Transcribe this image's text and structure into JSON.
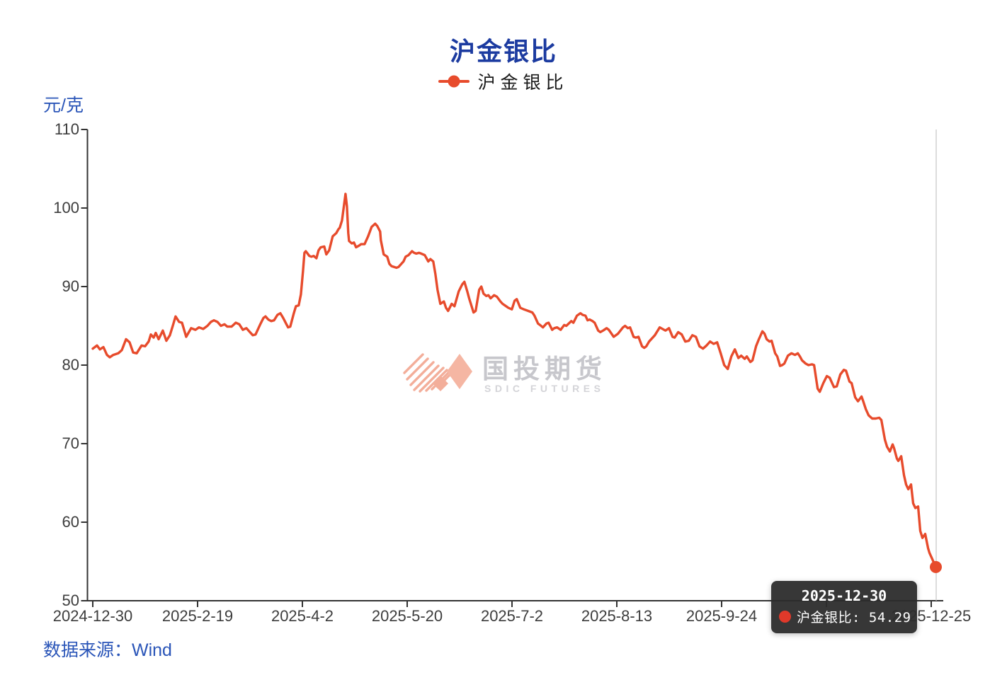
{
  "title": "沪金银比",
  "legend": {
    "label": "沪金银比"
  },
  "y_axis": {
    "unit": "元/克",
    "min": 50,
    "max": 110,
    "ticks": [
      110,
      100,
      90,
      80,
      70,
      60,
      50
    ]
  },
  "x_axis": {
    "labels": [
      "2024-12-30",
      "2025-2-19",
      "2025-4-2",
      "2025-5-20",
      "2025-7-2",
      "2025-8-13",
      "2025-9-24",
      "",
      "2025-12-25"
    ]
  },
  "source": "数据来源：Wind",
  "watermark": {
    "cn": "国投期货",
    "en": "SDIC FUTURES"
  },
  "tooltip": {
    "date": "2025-12-30",
    "series": "沪金银比",
    "value": "54.29"
  },
  "colors": {
    "line": "#e74b2c",
    "title": "#1c3ba0",
    "blue_label": "#2a55b8",
    "axis": "#333333",
    "axis_text": "#3d3d3d",
    "tooltip_bg": "#2c2c2c",
    "tooltip_dot": "#e0392a",
    "pointer_line": "#c9c9c9",
    "watermark_salmon": "#f3ae9a",
    "watermark_gray": "#c7c7cc"
  },
  "chart_data": {
    "type": "line",
    "title": "沪金银比",
    "series_name": "沪金银比",
    "y_unit": "元/克",
    "ylim": [
      50,
      110
    ],
    "y_ticks": [
      110,
      100,
      90,
      80,
      70,
      60,
      50
    ],
    "x_tick_labels": [
      "2024-12-30",
      "2025-2-19",
      "2025-4-2",
      "2025-5-20",
      "2025-7-2",
      "2025-8-13",
      "2025-9-24",
      "",
      "2025-12-25"
    ],
    "x_range": [
      "2024-12-30",
      "2025-12-30"
    ],
    "last_point": {
      "date": "2025-12-30",
      "value": 54.29
    },
    "legend_position": "top-center",
    "grid": false,
    "points": [
      [
        0.0,
        82.1
      ],
      [
        0.005,
        82.5
      ],
      [
        0.0084,
        82.0
      ],
      [
        0.0126,
        82.3
      ],
      [
        0.0168,
        81.3
      ],
      [
        0.0202,
        81.0
      ],
      [
        0.0244,
        81.3
      ],
      [
        0.0302,
        81.5
      ],
      [
        0.0344,
        81.9
      ],
      [
        0.0395,
        83.3
      ],
      [
        0.0437,
        82.9
      ],
      [
        0.0479,
        81.6
      ],
      [
        0.0521,
        81.5
      ],
      [
        0.0579,
        82.5
      ],
      [
        0.0621,
        82.4
      ],
      [
        0.0663,
        83.0
      ],
      [
        0.0689,
        83.9
      ],
      [
        0.0722,
        83.5
      ],
      [
        0.0747,
        84.1
      ],
      [
        0.0781,
        83.3
      ],
      [
        0.0831,
        84.4
      ],
      [
        0.0873,
        83.1
      ],
      [
        0.0915,
        83.8
      ],
      [
        0.0949,
        85.0
      ],
      [
        0.0982,
        86.2
      ],
      [
        0.1024,
        85.5
      ],
      [
        0.1058,
        85.4
      ],
      [
        0.1108,
        83.6
      ],
      [
        0.1167,
        84.7
      ],
      [
        0.1218,
        84.5
      ],
      [
        0.126,
        84.8
      ],
      [
        0.131,
        84.6
      ],
      [
        0.136,
        85.0
      ],
      [
        0.1402,
        85.5
      ],
      [
        0.1436,
        85.7
      ],
      [
        0.1478,
        85.5
      ],
      [
        0.152,
        85.0
      ],
      [
        0.1562,
        85.2
      ],
      [
        0.1595,
        84.9
      ],
      [
        0.1646,
        84.9
      ],
      [
        0.1696,
        85.4
      ],
      [
        0.1738,
        85.2
      ],
      [
        0.178,
        84.5
      ],
      [
        0.1822,
        84.7
      ],
      [
        0.1864,
        84.2
      ],
      [
        0.1898,
        83.8
      ],
      [
        0.1931,
        83.9
      ],
      [
        0.1982,
        85.1
      ],
      [
        0.2024,
        86.0
      ],
      [
        0.2049,
        86.2
      ],
      [
        0.2082,
        85.8
      ],
      [
        0.2116,
        85.6
      ],
      [
        0.215,
        85.7
      ],
      [
        0.2191,
        86.4
      ],
      [
        0.2225,
        86.6
      ],
      [
        0.2259,
        86.0
      ],
      [
        0.2292,
        85.3
      ],
      [
        0.2317,
        84.8
      ],
      [
        0.2343,
        84.9
      ],
      [
        0.2385,
        86.6
      ],
      [
        0.241,
        87.5
      ],
      [
        0.2443,
        87.6
      ],
      [
        0.2469,
        89.0
      ],
      [
        0.2494,
        92.0
      ],
      [
        0.2511,
        94.3
      ],
      [
        0.2527,
        94.5
      ],
      [
        0.2569,
        93.9
      ],
      [
        0.2594,
        93.8
      ],
      [
        0.262,
        93.9
      ],
      [
        0.2653,
        93.6
      ],
      [
        0.2678,
        94.6
      ],
      [
        0.2704,
        95.0
      ],
      [
        0.2746,
        95.1
      ],
      [
        0.277,
        94.1
      ],
      [
        0.2804,
        94.6
      ],
      [
        0.2846,
        96.4
      ],
      [
        0.2888,
        96.8
      ],
      [
        0.2914,
        97.3
      ],
      [
        0.293,
        97.5
      ],
      [
        0.2956,
        98.4
      ],
      [
        0.2998,
        101.8
      ],
      [
        0.3015,
        100.2
      ],
      [
        0.3031,
        96.8
      ],
      [
        0.304,
        95.8
      ],
      [
        0.3073,
        95.5
      ],
      [
        0.3098,
        95.6
      ],
      [
        0.3123,
        95.0
      ],
      [
        0.3157,
        95.2
      ],
      [
        0.3182,
        95.4
      ],
      [
        0.3224,
        95.4
      ],
      [
        0.3266,
        96.4
      ],
      [
        0.3308,
        97.6
      ],
      [
        0.335,
        98.0
      ],
      [
        0.3375,
        97.7
      ],
      [
        0.3409,
        97.0
      ],
      [
        0.3417,
        95.9
      ],
      [
        0.3451,
        94.1
      ],
      [
        0.3493,
        93.8
      ],
      [
        0.3518,
        92.9
      ],
      [
        0.3543,
        92.6
      ],
      [
        0.3602,
        92.4
      ],
      [
        0.3627,
        92.5
      ],
      [
        0.3686,
        93.2
      ],
      [
        0.3711,
        93.8
      ],
      [
        0.3745,
        94.0
      ],
      [
        0.3787,
        94.5
      ],
      [
        0.3812,
        94.3
      ],
      [
        0.3837,
        94.2
      ],
      [
        0.3871,
        94.3
      ],
      [
        0.3896,
        94.2
      ],
      [
        0.3938,
        94.0
      ],
      [
        0.398,
        93.2
      ],
      [
        0.4005,
        93.5
      ],
      [
        0.4039,
        93.2
      ],
      [
        0.4064,
        91.6
      ],
      [
        0.4089,
        89.6
      ],
      [
        0.4123,
        87.8
      ],
      [
        0.4165,
        88.1
      ],
      [
        0.419,
        87.3
      ],
      [
        0.4215,
        86.9
      ],
      [
        0.4257,
        87.8
      ],
      [
        0.4291,
        87.5
      ],
      [
        0.4341,
        89.4
      ],
      [
        0.4383,
        90.3
      ],
      [
        0.4408,
        90.6
      ],
      [
        0.4442,
        89.4
      ],
      [
        0.4467,
        88.4
      ],
      [
        0.4517,
        86.7
      ],
      [
        0.4542,
        86.9
      ],
      [
        0.4584,
        89.6
      ],
      [
        0.4609,
        90.0
      ],
      [
        0.4635,
        89.1
      ],
      [
        0.4668,
        88.8
      ],
      [
        0.4693,
        88.9
      ],
      [
        0.4719,
        88.5
      ],
      [
        0.4761,
        88.9
      ],
      [
        0.4794,
        88.7
      ],
      [
        0.4836,
        88.1
      ],
      [
        0.4861,
        87.8
      ],
      [
        0.4903,
        87.5
      ],
      [
        0.4929,
        87.3
      ],
      [
        0.4971,
        87.1
      ],
      [
        0.5004,
        88.2
      ],
      [
        0.5029,
        88.4
      ],
      [
        0.5071,
        87.3
      ],
      [
        0.5113,
        87.1
      ],
      [
        0.5164,
        86.9
      ],
      [
        0.5214,
        86.7
      ],
      [
        0.5239,
        86.3
      ],
      [
        0.5281,
        85.3
      ],
      [
        0.5306,
        85.1
      ],
      [
        0.534,
        84.8
      ],
      [
        0.5382,
        85.3
      ],
      [
        0.5407,
        85.4
      ],
      [
        0.5449,
        84.5
      ],
      [
        0.5474,
        84.7
      ],
      [
        0.5508,
        84.8
      ],
      [
        0.555,
        84.5
      ],
      [
        0.5592,
        85.1
      ],
      [
        0.5617,
        85.0
      ],
      [
        0.5676,
        85.6
      ],
      [
        0.5701,
        85.4
      ],
      [
        0.5743,
        86.3
      ],
      [
        0.5785,
        86.6
      ],
      [
        0.581,
        86.4
      ],
      [
        0.5844,
        86.3
      ],
      [
        0.5869,
        85.7
      ],
      [
        0.5894,
        85.8
      ],
      [
        0.5928,
        85.6
      ],
      [
        0.5953,
        85.4
      ],
      [
        0.5995,
        84.4
      ],
      [
        0.602,
        84.2
      ],
      [
        0.6053,
        84.4
      ],
      [
        0.6095,
        84.7
      ],
      [
        0.6121,
        84.5
      ],
      [
        0.6179,
        83.6
      ],
      [
        0.623,
        84.0
      ],
      [
        0.6289,
        84.8
      ],
      [
        0.6314,
        85.0
      ],
      [
        0.6347,
        84.7
      ],
      [
        0.6373,
        84.8
      ],
      [
        0.6415,
        83.6
      ],
      [
        0.644,
        83.5
      ],
      [
        0.6473,
        83.6
      ],
      [
        0.6515,
        82.4
      ],
      [
        0.6541,
        82.2
      ],
      [
        0.6566,
        82.4
      ],
      [
        0.6599,
        83.0
      ],
      [
        0.6667,
        83.8
      ],
      [
        0.6725,
        84.8
      ],
      [
        0.6793,
        84.4
      ],
      [
        0.6835,
        84.7
      ],
      [
        0.6877,
        83.6
      ],
      [
        0.6902,
        83.5
      ],
      [
        0.6944,
        84.2
      ],
      [
        0.6986,
        83.9
      ],
      [
        0.7028,
        83.0
      ],
      [
        0.707,
        83.1
      ],
      [
        0.7112,
        83.8
      ],
      [
        0.7154,
        83.6
      ],
      [
        0.7196,
        82.4
      ],
      [
        0.7238,
        82.1
      ],
      [
        0.728,
        82.5
      ],
      [
        0.7322,
        83.0
      ],
      [
        0.7364,
        82.7
      ],
      [
        0.7406,
        82.9
      ],
      [
        0.7448,
        81.5
      ],
      [
        0.749,
        80.0
      ],
      [
        0.7532,
        79.5
      ],
      [
        0.7574,
        81.1
      ],
      [
        0.7616,
        82.0
      ],
      [
        0.7658,
        80.9
      ],
      [
        0.7691,
        81.2
      ],
      [
        0.7733,
        80.8
      ],
      [
        0.7758,
        81.1
      ],
      [
        0.78,
        80.4
      ],
      [
        0.7825,
        80.6
      ],
      [
        0.7867,
        82.4
      ],
      [
        0.7901,
        83.3
      ],
      [
        0.7943,
        84.3
      ],
      [
        0.7968,
        84.0
      ],
      [
        0.7993,
        83.3
      ],
      [
        0.8027,
        83.0
      ],
      [
        0.8052,
        83.1
      ],
      [
        0.8094,
        81.5
      ],
      [
        0.8119,
        81.1
      ],
      [
        0.8152,
        79.9
      ],
      [
        0.8178,
        80.0
      ],
      [
        0.8203,
        80.2
      ],
      [
        0.8245,
        81.2
      ],
      [
        0.8287,
        81.5
      ],
      [
        0.8329,
        81.3
      ],
      [
        0.8363,
        81.5
      ],
      [
        0.8388,
        81.1
      ],
      [
        0.8413,
        80.6
      ],
      [
        0.8455,
        80.2
      ],
      [
        0.8489,
        80.0
      ],
      [
        0.8531,
        80.1
      ],
      [
        0.8556,
        80.0
      ],
      [
        0.8598,
        77.0
      ],
      [
        0.8623,
        76.6
      ],
      [
        0.8665,
        77.7
      ],
      [
        0.8707,
        78.6
      ],
      [
        0.8741,
        78.4
      ],
      [
        0.8791,
        77.2
      ],
      [
        0.8825,
        77.3
      ],
      [
        0.8867,
        78.8
      ],
      [
        0.8909,
        79.4
      ],
      [
        0.8934,
        79.3
      ],
      [
        0.8976,
        77.9
      ],
      [
        0.9001,
        77.7
      ],
      [
        0.9043,
        75.9
      ],
      [
        0.9077,
        75.4
      ],
      [
        0.9119,
        76.0
      ],
      [
        0.9136,
        75.5
      ],
      [
        0.9169,
        74.4
      ],
      [
        0.9203,
        73.6
      ],
      [
        0.9245,
        73.2
      ],
      [
        0.9287,
        73.2
      ],
      [
        0.9329,
        73.3
      ],
      [
        0.9354,
        73.0
      ],
      [
        0.9396,
        70.5
      ],
      [
        0.9421,
        69.6
      ],
      [
        0.9455,
        69.0
      ],
      [
        0.9488,
        69.9
      ],
      [
        0.9505,
        69.4
      ],
      [
        0.9538,
        68.1
      ],
      [
        0.9555,
        67.8
      ],
      [
        0.9589,
        68.4
      ],
      [
        0.9622,
        66.0
      ],
      [
        0.9647,
        64.8
      ],
      [
        0.9673,
        64.2
      ],
      [
        0.9706,
        64.8
      ],
      [
        0.9731,
        62.4
      ],
      [
        0.9757,
        61.8
      ],
      [
        0.979,
        62.0
      ],
      [
        0.9815,
        58.9
      ],
      [
        0.9841,
        58.0
      ],
      [
        0.9874,
        58.5
      ],
      [
        0.9908,
        56.7
      ],
      [
        0.9924,
        56.1
      ],
      [
        0.9958,
        55.3
      ],
      [
        1.0,
        54.29
      ]
    ]
  }
}
